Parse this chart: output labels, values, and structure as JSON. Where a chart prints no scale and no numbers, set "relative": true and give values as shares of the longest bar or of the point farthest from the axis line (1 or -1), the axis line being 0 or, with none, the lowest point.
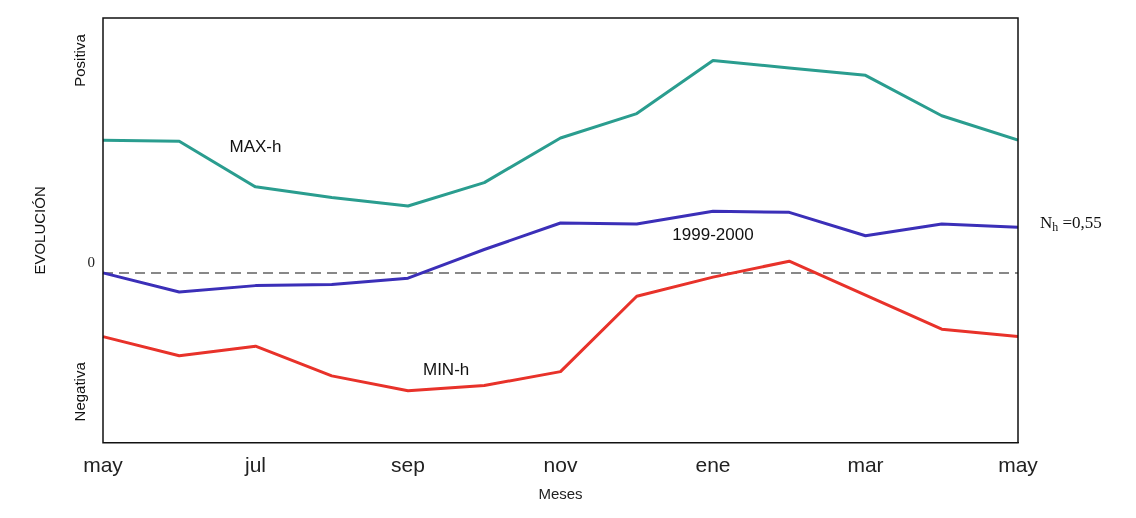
{
  "chart_data": {
    "type": "line",
    "relative": true,
    "xlabel": "Meses",
    "ylabel": "EVOLUCIÓN",
    "categories": [
      "may",
      null,
      "jul",
      null,
      "sep",
      null,
      "nov",
      null,
      "ene",
      null,
      "mar",
      null,
      "may"
    ],
    "series": [
      {
        "name": "MAX-h",
        "color": "#2a9d8f",
        "values": [
          0.625,
          0.62,
          0.405,
          0.355,
          0.315,
          0.425,
          0.635,
          0.75,
          1.0,
          0.965,
          0.93,
          0.74,
          0.625
        ]
      },
      {
        "name": "1999-2000",
        "color": "#3b2fb8",
        "values": [
          0,
          -0.09,
          -0.06,
          -0.055,
          -0.025,
          0.11,
          0.235,
          0.23,
          0.29,
          0.285,
          0.175,
          0.23,
          0.215
        ]
      },
      {
        "name": "MIN-h",
        "color": "#e8322a",
        "values": [
          -0.3,
          -0.39,
          -0.345,
          -0.485,
          -0.555,
          -0.53,
          -0.465,
          -0.11,
          -0.02,
          0.055,
          -0.105,
          -0.265,
          -0.3
        ]
      }
    ],
    "ref_lines": [
      {
        "axis": "y",
        "value": 0,
        "label": "0",
        "color": "#888888",
        "line_style": "dashed"
      }
    ],
    "annotations": [
      "Positiva",
      "Negativa",
      "N$_{h}$ =0,55"
    ],
    "legend": false,
    "grid": false,
    "marker": "none",
    "line_style": "solid"
  }
}
